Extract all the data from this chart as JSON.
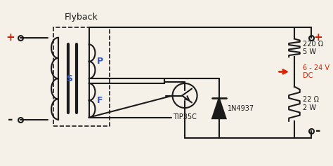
{
  "title": "Flyback",
  "bg_color": "#f5f0e8",
  "black": "#1a1a1a",
  "blue": "#3355bb",
  "red": "#cc2200",
  "red_arrow": "#dd2200",
  "labels": {
    "S": "S",
    "P": "P",
    "F": "F",
    "transistor": "TIP35C",
    "diode": "1N4937",
    "r1": "220 Ω\n5 W",
    "r2": "22 Ω\n2 W",
    "voltage": "6 - 24 V\nDC"
  }
}
